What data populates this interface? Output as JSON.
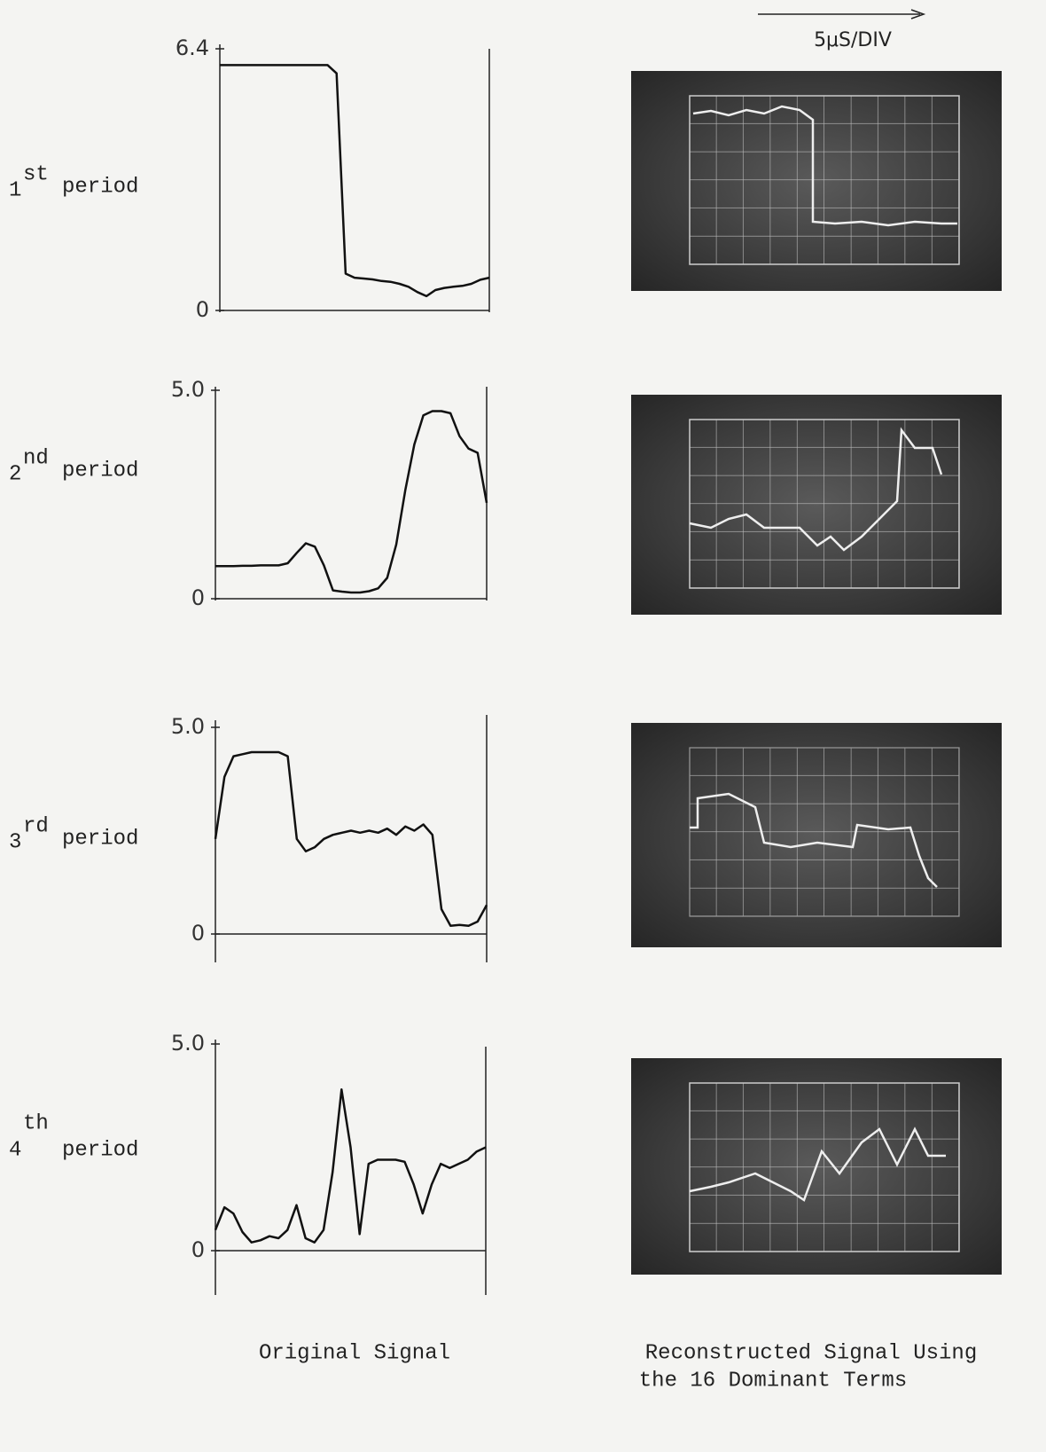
{
  "scale_label": "5μS/DIV",
  "captions": {
    "left": "Original Signal",
    "right": [
      "Reconstructed Signal Using",
      "the 16 Dominant Terms"
    ]
  },
  "chart_data": [
    {
      "type": "line",
      "label": {
        "ordinal": "1",
        "suffix": "st",
        "text": "period"
      },
      "color": "#111111",
      "ylim": [
        0,
        6.4
      ],
      "yticks": [
        0,
        6.4
      ],
      "values": [
        6.0,
        6.0,
        6.0,
        6.0,
        6.0,
        6.0,
        6.0,
        6.0,
        6.0,
        6.0,
        6.0,
        6.0,
        6.0,
        5.8,
        0.9,
        0.8,
        0.78,
        0.76,
        0.72,
        0.7,
        0.65,
        0.58,
        0.45,
        0.35,
        0.5,
        0.55,
        0.58,
        0.6,
        0.65,
        0.75,
        0.8
      ]
    },
    {
      "type": "line",
      "label": {
        "ordinal": "2",
        "suffix": "nd",
        "text": "period"
      },
      "color": "#111111",
      "ylim": [
        0,
        5
      ],
      "yticks": [
        0,
        {
          "value": 5,
          "label": "5.0"
        }
      ],
      "values": [
        0.78,
        0.78,
        0.78,
        0.79,
        0.79,
        0.8,
        0.8,
        0.8,
        0.85,
        1.1,
        1.33,
        1.25,
        0.8,
        0.2,
        0.17,
        0.15,
        0.15,
        0.18,
        0.25,
        0.5,
        1.3,
        2.6,
        3.7,
        4.4,
        4.5,
        4.5,
        4.45,
        3.9,
        3.6,
        3.5,
        2.3
      ]
    },
    {
      "type": "line",
      "label": {
        "ordinal": "3",
        "suffix": "rd",
        "text": "period"
      },
      "color": "#111111",
      "ylim": [
        0,
        5
      ],
      "yticks": [
        0,
        {
          "value": 5,
          "label": "5.0"
        }
      ],
      "values": [
        2.3,
        3.8,
        4.3,
        4.35,
        4.4,
        4.4,
        4.4,
        4.4,
        4.3,
        2.3,
        2.0,
        2.1,
        2.3,
        2.4,
        2.45,
        2.5,
        2.45,
        2.5,
        2.45,
        2.55,
        2.4,
        2.6,
        2.5,
        2.65,
        2.4,
        0.6,
        0.2,
        0.22,
        0.2,
        0.3,
        0.7
      ]
    },
    {
      "type": "line",
      "label": {
        "ordinal": "4",
        "suffix": "th",
        "text": "period"
      },
      "color": "#111111",
      "ylim": [
        0,
        5
      ],
      "yticks": [
        0,
        {
          "value": 5,
          "label": "5.0"
        }
      ],
      "values": [
        0.5,
        1.05,
        0.9,
        0.45,
        0.2,
        0.25,
        0.35,
        0.3,
        0.5,
        1.1,
        0.3,
        0.2,
        0.5,
        1.9,
        3.9,
        2.5,
        0.4,
        2.1,
        2.2,
        2.2,
        2.2,
        2.15,
        1.6,
        0.9,
        1.6,
        2.1,
        2.0,
        2.1,
        2.2,
        2.4,
        2.5
      ]
    }
  ]
}
